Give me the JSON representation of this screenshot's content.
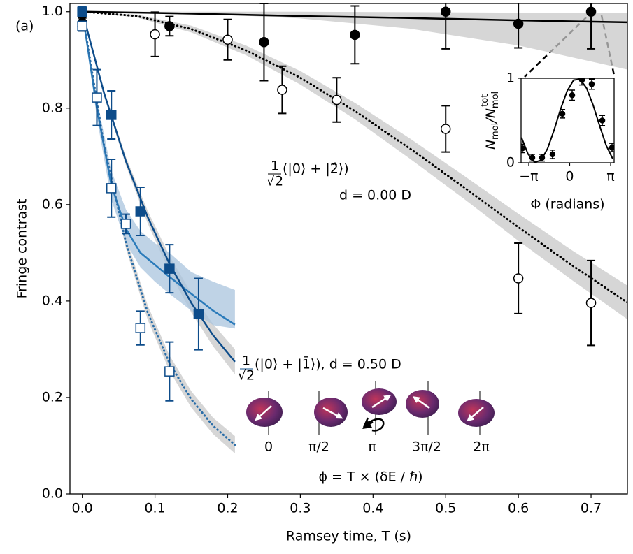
{
  "chart_data": [
    {
      "type": "scatter",
      "panel_label": "(a)",
      "xlabel": "Ramsey time, T (s)",
      "ylabel": "Fringe contrast",
      "xlim": [
        -0.017,
        0.75
      ],
      "ylim": [
        0,
        1.017
      ],
      "xticks": [
        {
          "value": 0,
          "label": "0.0"
        },
        0.1,
        0.2,
        0.3,
        0.4,
        0.5,
        0.6,
        0.7
      ],
      "yticks": [
        {
          "value": 0,
          "label": "0.0"
        },
        0.2,
        0.4,
        0.6,
        0.8,
        {
          "value": 1,
          "label": "1.0"
        }
      ],
      "grid": false,
      "series": [
        {
          "kind": "band",
          "color": "#c8c8c8",
          "x": [
            0,
            0.15,
            0.3,
            0.45,
            0.6,
            0.75
          ],
          "upper": [
            1,
            1,
            1,
            0.999,
            0.998,
            0.997
          ],
          "lower": [
            1,
            0.997,
            0.986,
            0.965,
            0.93,
            0.88
          ]
        },
        {
          "kind": "band",
          "color": "#c8c8c8",
          "x": [
            0,
            0.075,
            0.15,
            0.225,
            0.3,
            0.375,
            0.45,
            0.525,
            0.6,
            0.675,
            0.75
          ],
          "upper": [
            1,
            0.994,
            0.971,
            0.93,
            0.877,
            0.811,
            0.738,
            0.66,
            0.581,
            0.504,
            0.432
          ],
          "lower": [
            1,
            0.988,
            0.957,
            0.91,
            0.849,
            0.777,
            0.696,
            0.612,
            0.525,
            0.442,
            0.362
          ]
        },
        {
          "kind": "band",
          "color": "#c8c8c8",
          "x": [
            0,
            0.03,
            0.06,
            0.09,
            0.12,
            0.15,
            0.18,
            0.21
          ],
          "upper": [
            1,
            0.836,
            0.699,
            0.587,
            0.494,
            0.416,
            0.352,
            0.3
          ],
          "lower": [
            1,
            0.826,
            0.681,
            0.561,
            0.46,
            0.376,
            0.306,
            0.248
          ]
        },
        {
          "kind": "band",
          "color": "#c8c8c8",
          "x": [
            0,
            0.03,
            0.06,
            0.09,
            0.12,
            0.15,
            0.18,
            0.21
          ],
          "upper": [
            1,
            0.73,
            0.533,
            0.391,
            0.287,
            0.213,
            0.158,
            0.12
          ],
          "lower": [
            1,
            0.714,
            0.509,
            0.361,
            0.255,
            0.179,
            0.124,
            0.084
          ]
        },
        {
          "kind": "band",
          "color": "#a9c4de",
          "x": [
            0,
            0.02,
            0.04,
            0.06,
            0.08,
            0.1,
            0.12,
            0.15,
            0.18,
            0.21
          ],
          "upper": [
            1,
            0.82,
            0.67,
            0.59,
            0.545,
            0.52,
            0.5,
            0.46,
            0.44,
            0.423
          ],
          "lower": [
            1,
            0.78,
            0.61,
            0.52,
            0.47,
            0.44,
            0.415,
            0.38,
            0.35,
            0.343
          ]
        },
        {
          "kind": "line",
          "style": "solid",
          "color": "#000000",
          "x": [
            0,
            0.15,
            0.3,
            0.45,
            0.6,
            0.75
          ],
          "values": [
            1,
            0.996,
            0.991,
            0.987,
            0.982,
            0.978
          ]
        },
        {
          "kind": "line",
          "style": "dotted",
          "color": "#000000",
          "x": [
            0,
            0.075,
            0.15,
            0.225,
            0.3,
            0.375,
            0.45,
            0.525,
            0.6,
            0.675,
            0.75
          ],
          "values": [
            1,
            0.991,
            0.964,
            0.92,
            0.863,
            0.794,
            0.717,
            0.636,
            0.553,
            0.473,
            0.397
          ]
        },
        {
          "kind": "line",
          "style": "solid",
          "color": "#2b7bba",
          "x": [
            0,
            0.02,
            0.04,
            0.06,
            0.08,
            0.1,
            0.12,
            0.15,
            0.18,
            0.21
          ],
          "values": [
            1,
            0.8,
            0.64,
            0.55,
            0.5,
            0.475,
            0.45,
            0.415,
            0.38,
            0.351
          ]
        },
        {
          "kind": "line",
          "style": "solid",
          "color": "#0d4c8a",
          "x": [
            0,
            0.03,
            0.06,
            0.09,
            0.12,
            0.15,
            0.18,
            0.21
          ],
          "values": [
            1,
            0.831,
            0.69,
            0.574,
            0.477,
            0.396,
            0.329,
            0.274
          ]
        },
        {
          "kind": "line",
          "style": "dotted",
          "color": "#2b6ea8",
          "x": [
            0,
            0.03,
            0.06,
            0.09,
            0.12,
            0.15,
            0.18,
            0.21
          ],
          "values": [
            1,
            0.722,
            0.521,
            0.376,
            0.271,
            0.196,
            0.141,
            0.102
          ]
        },
        {
          "kind": "points",
          "marker": "circle",
          "filled": false,
          "color": "#000000",
          "x": [
            0,
            0.1,
            0.2,
            0.275,
            0.35,
            0.5,
            0.6,
            0.7
          ],
          "values": [
            0.97,
            0.953,
            0.942,
            0.838,
            0.817,
            0.757,
            0.447,
            0.396
          ],
          "errors": [
            0.01,
            0.046,
            0.042,
            0.049,
            0.046,
            0.048,
            0.073,
            0.088
          ]
        },
        {
          "kind": "points",
          "marker": "circle",
          "filled": true,
          "color": "#000000",
          "x": [
            0,
            0.12,
            0.25,
            0.375,
            0.5,
            0.6,
            0.7
          ],
          "values": [
            0.977,
            0.97,
            0.937,
            0.952,
            1.0,
            0.975,
            1.0
          ],
          "errors": [
            0.01,
            0.02,
            0.08,
            0.06,
            0.077,
            0.05,
            0.077
          ]
        },
        {
          "kind": "points",
          "marker": "square",
          "filled": false,
          "color": "#0d4c8a",
          "x": [
            0,
            0.02,
            0.04,
            0.06,
            0.08,
            0.12
          ],
          "values": [
            0.97,
            0.822,
            0.634,
            0.56,
            0.344,
            0.254
          ],
          "errors": [
            0.01,
            0.058,
            0.06,
            0.02,
            0.035,
            0.061
          ]
        },
        {
          "kind": "points",
          "marker": "square",
          "filled": true,
          "color": "#0d4c8a",
          "x": [
            0,
            0.04,
            0.08,
            0.12,
            0.16
          ],
          "values": [
            1.0,
            0.786,
            0.586,
            0.467,
            0.373
          ],
          "errors": [
            0.01,
            0.05,
            0.05,
            0.05,
            0.074
          ]
        }
      ],
      "annotations": [
        {
          "text": "1",
          "color": "#000000"
        },
        {
          "text": "√2",
          "color": "#000000"
        },
        {
          "text": "(|0⟩ + |2̂⟩)",
          "color": "#000000"
        },
        {
          "text": "d = 0.00 D",
          "color": "#000000"
        },
        {
          "text": "1",
          "color": "#0d4c8a"
        },
        {
          "text": "√2",
          "color": "#0d4c8a"
        },
        {
          "text": "(|0⟩ + |1̄⟩), d = 0.50 D",
          "color": "#0d4c8a"
        },
        {
          "text": "0",
          "color": "#000000"
        },
        {
          "text": "π/2",
          "color": "#000000"
        },
        {
          "text": "π",
          "color": "#000000"
        },
        {
          "text": "3π/2",
          "color": "#000000"
        },
        {
          "text": "2π",
          "color": "#000000"
        },
        {
          "text": "ϕ = T × (δE / ℏ)",
          "color": "#000000"
        }
      ]
    },
    {
      "type": "scatter",
      "xlabel": "Φ (radians)",
      "ylabel": [
        "N",
        "mol",
        "/N",
        "mol",
        "tot"
      ],
      "xlim": [
        -3.73,
        3.41
      ],
      "ylim": [
        0,
        1
      ],
      "xticks": [
        {
          "value": -3.14159,
          "label": "−π"
        },
        0,
        {
          "value": 3.14159,
          "label": "π"
        }
      ],
      "yticks": [
        0,
        1
      ],
      "grid": false,
      "series": [
        {
          "kind": "line",
          "style": "solid",
          "color": "#000000",
          "x": [
            -3.7,
            -3.2,
            -2.7,
            -2.2,
            -1.7,
            -1.2,
            -0.7,
            -0.2,
            0.3,
            0.8,
            1.3,
            1.8,
            2.3,
            2.8,
            3.3
          ],
          "values": [
            0.3,
            0.104,
            0.006,
            0.029,
            0.167,
            0.386,
            0.634,
            0.848,
            0.978,
            0.99,
            0.882,
            0.681,
            0.436,
            0.206,
            0.048
          ]
        },
        {
          "kind": "points",
          "marker": "circle",
          "filled": true,
          "color": "#000000",
          "x": [
            -3.63,
            -2.87,
            -2.12,
            -1.32,
            -0.56,
            0.19,
            0.94,
            1.69,
            2.5,
            3.25
          ],
          "values": [
            0.17,
            0.06,
            0.06,
            0.1,
            0.58,
            0.8,
            0.98,
            0.93,
            0.5,
            0.18
          ],
          "errors": [
            0.05,
            0.04,
            0.04,
            0.05,
            0.05,
            0.06,
            0.06,
            0.06,
            0.06,
            0.05
          ]
        }
      ]
    }
  ]
}
